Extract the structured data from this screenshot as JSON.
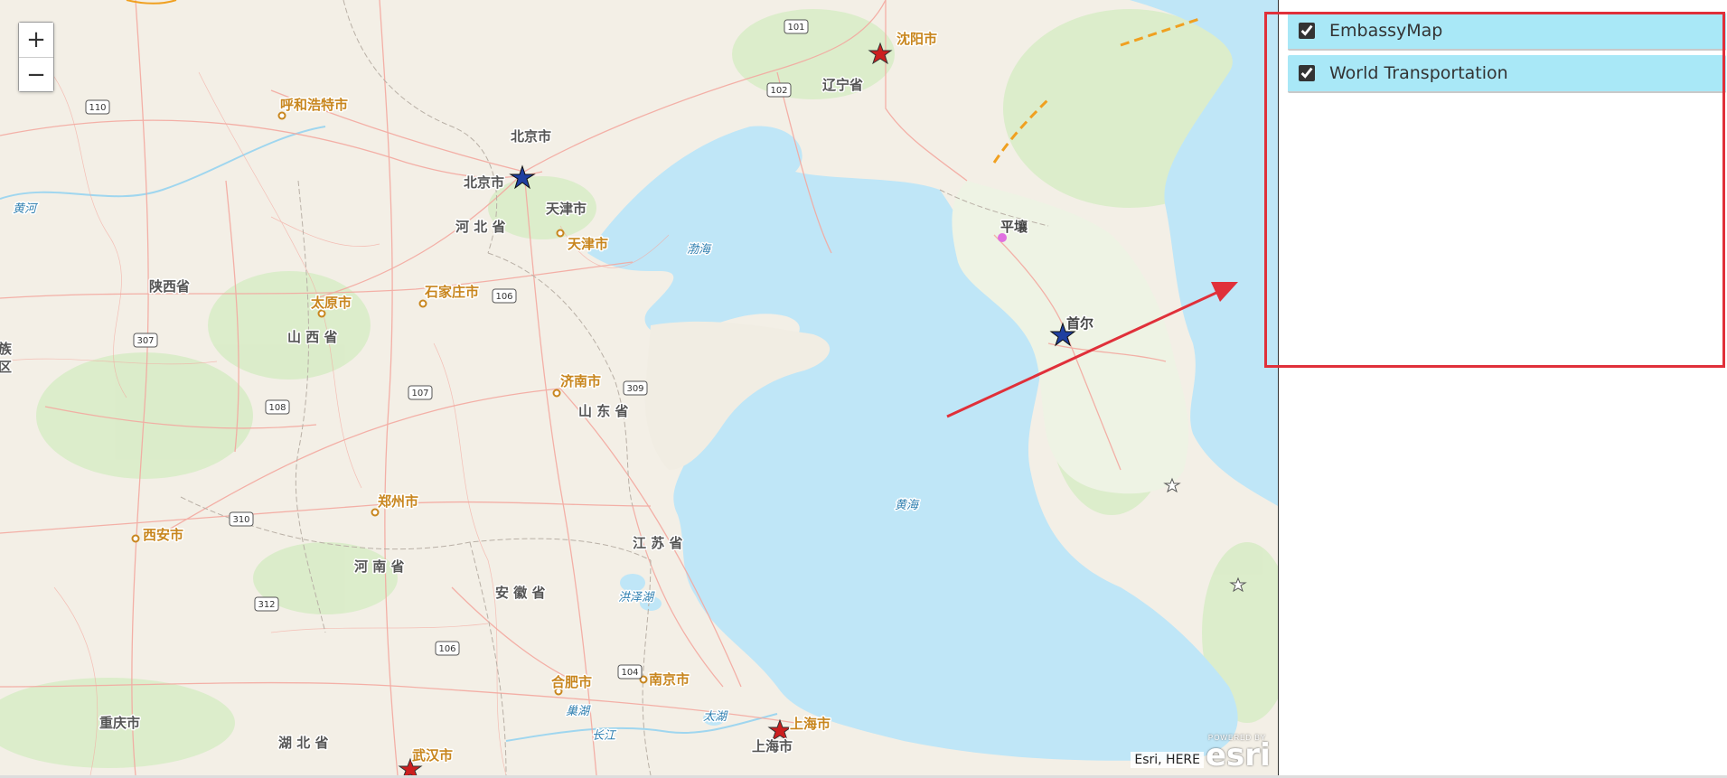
{
  "map": {
    "zoom_in": "+",
    "zoom_out": "−",
    "attribution": "Esri, HERE",
    "logo_powered": "POWERED BY",
    "logo_name": "esri",
    "colors": {
      "water": "#bfe6f7",
      "land": "#f3efe6",
      "road": "#f3a9a0",
      "city": "#c8861e",
      "province": "#555555",
      "water_label": "#2f7fb0"
    },
    "labels": {
      "shenyang": "沈阳市",
      "liaoning": "辽宁省",
      "huhehaote": "呼和浩特市",
      "beijing_region": "北京市",
      "beijing": "北京市",
      "tianjin_region": "天津市",
      "tianjin": "天津市",
      "hebei": "河 北 省",
      "huanghe": "黄河",
      "shaanxi": "陕西省",
      "taiyuan": "太原市",
      "shijiazhuang": "石家庄市",
      "shanxi": "山 西 省",
      "bohai": "渤海",
      "pyongyang": "平壤",
      "seoul": "首尔",
      "jinan": "济南市",
      "shandong": "山 东 省",
      "zu": "族",
      "qu": "区",
      "zhengzhou": "郑州市",
      "xian": "西安市",
      "huanghai": "黄海",
      "jiangsu": "江 苏 省",
      "henan": "河 南 省",
      "anhui": "安 徽 省",
      "hongzehu": "洪泽湖",
      "hefei": "合肥市",
      "nanjing": "南京市",
      "chaohu": "巢湖",
      "taihu": "太湖",
      "shanghai": "上海市",
      "shanghai_region": "上海市",
      "changjiang": "长江",
      "chongqing": "重庆市",
      "hubei": "湖 北 省",
      "wuhan": "武汉市"
    },
    "shields": {
      "s101": "101",
      "s102": "102",
      "s110": "110",
      "s106a": "106",
      "s307": "307",
      "s309": "309",
      "s107": "107",
      "s108": "108",
      "s310": "310",
      "s312": "312",
      "s106b": "106",
      "s104": "104"
    }
  },
  "layer_list": {
    "items": [
      {
        "label": "EmbassyMap",
        "checked": true
      },
      {
        "label": "World Transportation",
        "checked": true
      }
    ]
  },
  "annotation": {
    "box_color": "#e0303a",
    "arrow_color": "#e0303a"
  }
}
